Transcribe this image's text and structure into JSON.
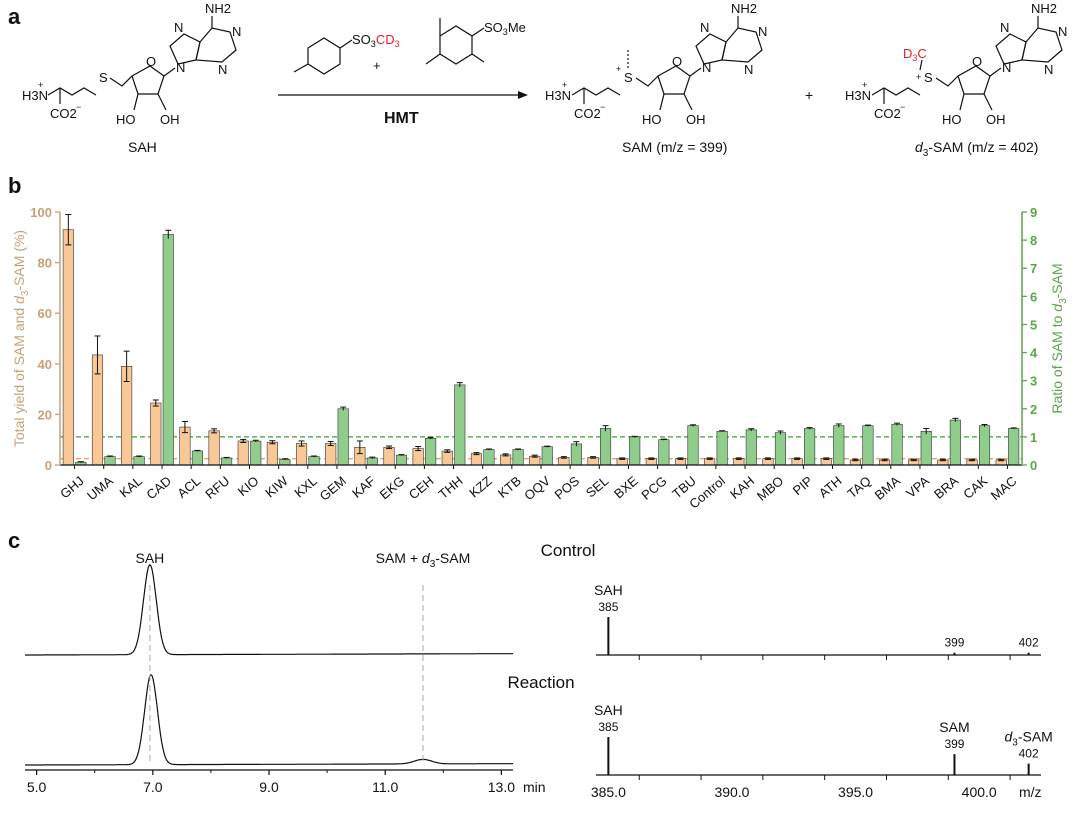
{
  "panel_a": {
    "letter": "a",
    "reactant_caption": "SAH",
    "reagent_main": "SO3CD3",
    "reagent_sub": "SO3Me",
    "plus": "+",
    "arrow_label": "HMT",
    "product1_caption": "SAM (m/z = 399)",
    "product2_caption": "d3-SAM (m/z = 402)",
    "product2_italic": "d",
    "product2_sub": "3",
    "product2_rest": "-SAM (m/z = 402)",
    "labels": {
      "nh2": "NH2",
      "h3n": "H3N",
      "co2": "CO2",
      "ho": "HO",
      "oh": "OH",
      "s": "S",
      "n": "N",
      "o": "O",
      "d3c": "D3C"
    },
    "colors": {
      "isotope_red": "#e8202a"
    }
  },
  "panel_b": {
    "letter": "b",
    "chart_data": {
      "type": "bar",
      "categories": [
        "GHJ",
        "UMA",
        "KAL",
        "CAD",
        "ACL",
        "RFU",
        "KIO",
        "KIW",
        "KXL",
        "GEM",
        "KAF",
        "EKG",
        "CEH",
        "THH",
        "KZZ",
        "KTB",
        "OQV",
        "POS",
        "SEL",
        "BXE",
        "PCG",
        "TBU",
        "Control",
        "KAH",
        "MBO",
        "PIP",
        "ATH",
        "TAQ",
        "BMA",
        "VPA",
        "BRA",
        "CAK",
        "MAC"
      ],
      "series": [
        {
          "axis": "left",
          "color": "#f9c896",
          "values": [
            93,
            43.5,
            39,
            24.5,
            15,
            13.5,
            9.5,
            9,
            8.5,
            8.5,
            7,
            7,
            6.5,
            5.5,
            4.5,
            4,
            3.5,
            3,
            3,
            2.5,
            2.5,
            2.5,
            2.5,
            2.5,
            2.5,
            2.5,
            2.5,
            2,
            2,
            2,
            2,
            2,
            2
          ],
          "errors": [
            6,
            7.5,
            6,
            1.2,
            2.2,
            0.8,
            0.6,
            0.6,
            1,
            0.8,
            2.5,
            0.5,
            0.8,
            0.5,
            0.4,
            0.4,
            0.4,
            0.3,
            0.3,
            0.3,
            0.3,
            0.3,
            0.3,
            0.3,
            0.3,
            0.3,
            0.3,
            0.3,
            0.3,
            0.3,
            0.3,
            0.3,
            0.3
          ]
        },
        {
          "axis": "right",
          "color": "#90cc8c",
          "values": [
            0.1,
            0.3,
            0.3,
            8.2,
            0.5,
            0.25,
            0.85,
            0.2,
            0.3,
            2.0,
            0.25,
            0.35,
            0.95,
            2.85,
            0.55,
            0.55,
            0.65,
            0.75,
            1.3,
            1.0,
            0.9,
            1.4,
            1.2,
            1.25,
            1.15,
            1.3,
            1.4,
            1.4,
            1.45,
            1.2,
            1.6,
            1.4,
            1.3
          ],
          "errors": [
            0.02,
            0.02,
            0.02,
            0.15,
            0.02,
            0.02,
            0.03,
            0.02,
            0.02,
            0.06,
            0.03,
            0.02,
            0.03,
            0.08,
            0.02,
            0.02,
            0.02,
            0.08,
            0.1,
            0.02,
            0.02,
            0.03,
            0.02,
            0.04,
            0.06,
            0.03,
            0.06,
            0.02,
            0.04,
            0.1,
            0.06,
            0.04,
            0.02
          ]
        }
      ],
      "left_axis": {
        "label_pre": "Total yield of SAM and ",
        "label_italic": "d",
        "label_sub": "3",
        "label_post": "-SAM (%)",
        "ylim": [
          0,
          100
        ],
        "ticks": [
          "0",
          "20",
          "40",
          "60",
          "80",
          "100"
        ],
        "color": "#c8a078"
      },
      "right_axis": {
        "label_pre": "Ratio of SAM to ",
        "label_italic": "d",
        "label_sub": "3",
        "label_post": "-SAM",
        "ylim": [
          0,
          9
        ],
        "ticks": [
          "0",
          "1",
          "2",
          "3",
          "4",
          "5",
          "6",
          "7",
          "8",
          "9"
        ],
        "color": "#5aa64a"
      },
      "reference_lines": [
        {
          "axis": "right",
          "value": 1.0,
          "color": "#3fa236",
          "style": "dashed"
        },
        {
          "axis": "left",
          "value": 2.5,
          "color": "#f0a060",
          "style": "dashed"
        }
      ]
    }
  },
  "panel_c": {
    "letter": "c",
    "lc_chart": {
      "chart_data": {
        "type": "line",
        "xlabel": "min",
        "xlim": [
          4.8,
          13.2
        ],
        "x_ticks": [
          "5.0",
          "7.0",
          "9.0",
          "11.0",
          "13.0"
        ],
        "traces": [
          {
            "name": "Control",
            "peaks": [
              {
                "x": 6.95,
                "height": 1.0
              }
            ]
          },
          {
            "name": "Reaction",
            "peaks": [
              {
                "x": 6.97,
                "height": 1.0
              },
              {
                "x": 11.65,
                "height": 0.05
              }
            ]
          }
        ],
        "annotations": [
          {
            "text": "SAH",
            "x": 6.95
          },
          {
            "text_pre": "SAM + ",
            "text_italic": "d",
            "text_sub": "3",
            "text_post": "-SAM",
            "x": 11.65
          }
        ],
        "trace_labels": [
          "Control",
          "Reaction"
        ]
      }
    },
    "ms_chart": {
      "chart_data": {
        "type": "bar",
        "xlabel": "m/z",
        "xlim": [
          384.5,
          402.5
        ],
        "x_ticks": [
          "385.0",
          "390.0",
          "395.0",
          "400.0"
        ],
        "spectra": [
          {
            "name": "Control",
            "peaks": [
              {
                "mz": 385,
                "intensity": 1.0
              },
              {
                "mz": 399,
                "intensity": 0.06
              },
              {
                "mz": 402,
                "intensity": 0.06
              }
            ],
            "labels": [
              {
                "name": "SAH",
                "value": "385"
              },
              {
                "value": "399"
              },
              {
                "value": "402"
              }
            ]
          },
          {
            "name": "Reaction",
            "peaks": [
              {
                "mz": 385,
                "intensity": 1.0
              },
              {
                "mz": 399,
                "intensity": 0.55
              },
              {
                "mz": 402,
                "intensity": 0.3
              }
            ],
            "labels": [
              {
                "name": "SAH",
                "value": "385"
              },
              {
                "name": "SAM",
                "value": "399"
              },
              {
                "name_italic": "d",
                "name_sub": "3",
                "name_post": "-SAM",
                "value": "402"
              }
            ]
          }
        ]
      }
    }
  }
}
